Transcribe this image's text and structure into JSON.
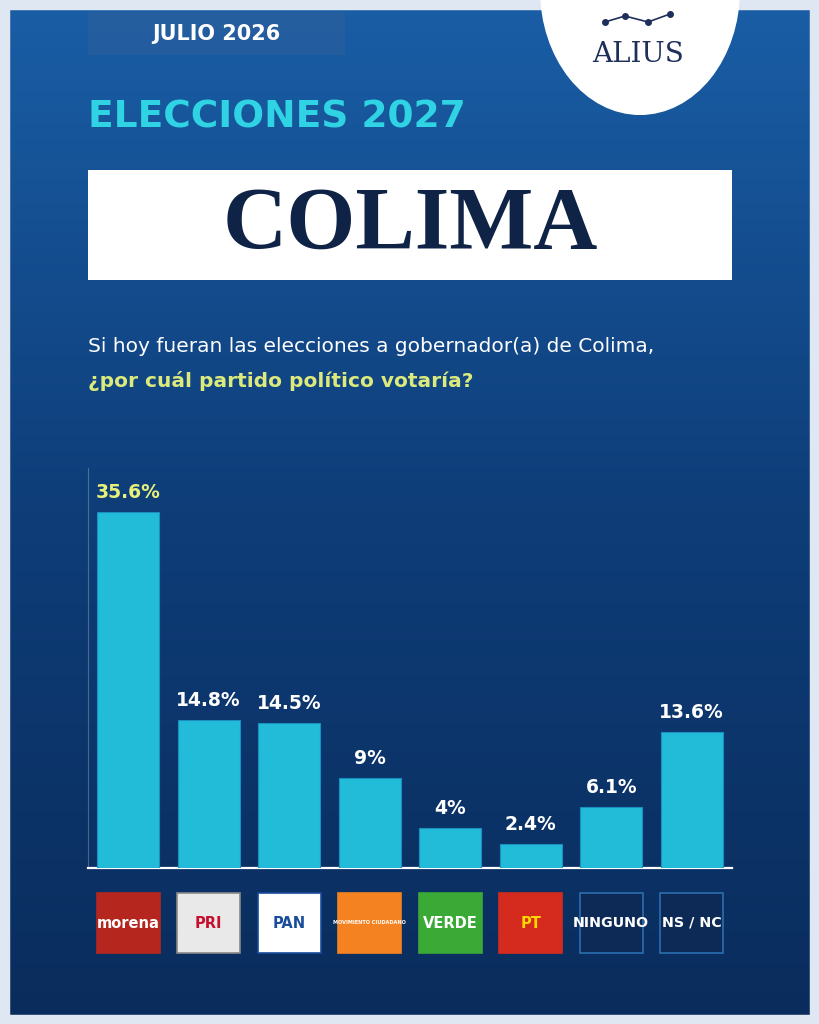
{
  "chart_data": {
    "type": "bar",
    "title": "COLIMA",
    "subtitle": "Si hoy fueran las elecciones a gobernador(a) de Colima,",
    "annotations": [
      "JULIO 2026",
      "ALIUS",
      "ELECCIONES 2027",
      "¿por cuál partido político votaría?"
    ],
    "categories": [
      "morena",
      "PRI",
      "PAN",
      "MOVIMIENTO CIUDADANO",
      "VERDE",
      "PT",
      "NINGUNO",
      "NS / NC"
    ],
    "values": [
      35.6,
      14.8,
      14.5,
      9,
      4,
      2.4,
      6.1,
      13.6
    ],
    "value_labels": [
      "35.6%",
      "14.8%",
      "14.5%",
      "9%",
      "4%",
      "2.4%",
      "6.1%",
      "13.6%"
    ],
    "color": "#22bcd8",
    "ylim": [
      0,
      40
    ],
    "yticks": [],
    "grid": false,
    "data_labels": true,
    "tick_labels": "x"
  }
}
